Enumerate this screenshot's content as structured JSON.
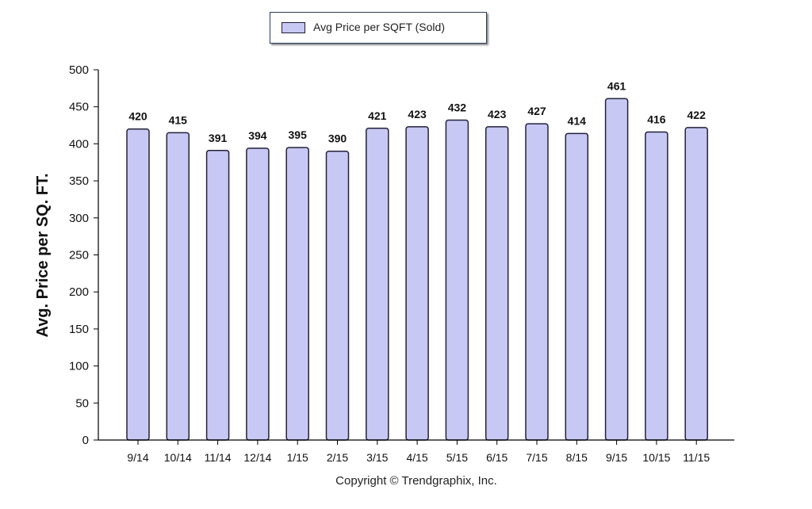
{
  "chart_data": {
    "type": "bar",
    "categories": [
      "9/14",
      "10/14",
      "11/14",
      "12/14",
      "1/15",
      "2/15",
      "3/15",
      "4/15",
      "5/15",
      "6/15",
      "7/15",
      "8/15",
      "9/15",
      "10/15",
      "11/15"
    ],
    "series": [
      {
        "name": "Avg Price per SQFT (Sold)",
        "values": [
          420,
          415,
          391,
          394,
          395,
          390,
          421,
          423,
          432,
          423,
          427,
          414,
          461,
          416,
          422
        ]
      }
    ],
    "ylabel": "Avg. Price per SQ. FT.",
    "ylim": [
      0,
      500
    ],
    "yticks": [
      0,
      50,
      100,
      150,
      200,
      250,
      300,
      350,
      400,
      450,
      500
    ],
    "grid": false,
    "legend_position": "top-center",
    "bar_color": "#c8c8f4",
    "bar_edge_color": "#22223a"
  },
  "footer": {
    "copyright": "Copyright © Trendgraphix, Inc."
  }
}
